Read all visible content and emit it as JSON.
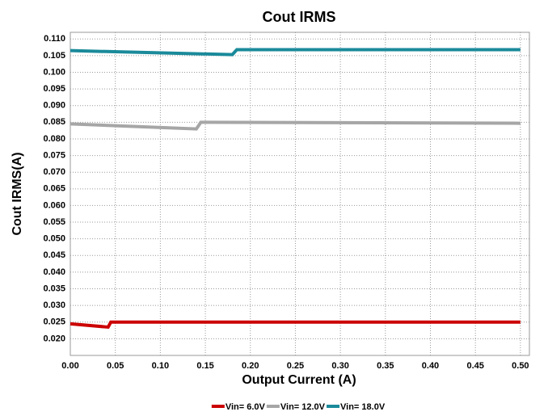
{
  "chart_data": {
    "type": "line",
    "title": "Cout IRMS",
    "x_label": "Output Current (A)",
    "y_label": "Cout IRMS(A)",
    "xlim": [
      0,
      0.51
    ],
    "ylim": [
      0.015,
      0.112
    ],
    "grid": true,
    "legend": "bottom",
    "xticks": [
      {
        "value": 0,
        "label": "0.00"
      },
      {
        "value": 0.05,
        "label": "0.05"
      },
      {
        "value": 0.1,
        "label": "0.10"
      },
      {
        "value": 0.15,
        "label": "0.15"
      },
      {
        "value": 0.2,
        "label": "0.20"
      },
      {
        "value": 0.25,
        "label": "0.25"
      },
      {
        "value": 0.3,
        "label": "0.30"
      },
      {
        "value": 0.35,
        "label": "0.35"
      },
      {
        "value": 0.4,
        "label": "0.40"
      },
      {
        "value": 0.45,
        "label": "0.45"
      },
      {
        "value": 0.5,
        "label": "0.50"
      }
    ],
    "yticks": [
      {
        "value": 0.02,
        "label": "0.020"
      },
      {
        "value": 0.025,
        "label": "0.025"
      },
      {
        "value": 0.03,
        "label": "0.030"
      },
      {
        "value": 0.035,
        "label": "0.035"
      },
      {
        "value": 0.04,
        "label": "0.040"
      },
      {
        "value": 0.045,
        "label": "0.045"
      },
      {
        "value": 0.05,
        "label": "0.050"
      },
      {
        "value": 0.055,
        "label": "0.055"
      },
      {
        "value": 0.06,
        "label": "0.060"
      },
      {
        "value": 0.065,
        "label": "0.065"
      },
      {
        "value": 0.07,
        "label": "0.070"
      },
      {
        "value": 0.075,
        "label": "0.075"
      },
      {
        "value": 0.08,
        "label": "0.080"
      },
      {
        "value": 0.085,
        "label": "0.085"
      },
      {
        "value": 0.09,
        "label": "0.090"
      },
      {
        "value": 0.095,
        "label": "0.095"
      },
      {
        "value": 0.1,
        "label": "0.100"
      },
      {
        "value": 0.105,
        "label": "0.105"
      },
      {
        "value": 0.11,
        "label": "0.110"
      }
    ],
    "series": [
      {
        "name": "Vin= 6.0V",
        "color": "#cc0000",
        "x": [
          0,
          0.042,
          0.045,
          0.5
        ],
        "values": [
          0.0245,
          0.0235,
          0.025,
          0.025
        ]
      },
      {
        "name": "Vin= 12.0V",
        "color": "#a6a6a6",
        "x": [
          0,
          0.14,
          0.145,
          0.5
        ],
        "values": [
          0.0845,
          0.083,
          0.085,
          0.0847
        ]
      },
      {
        "name": "Vin= 18.0V",
        "color": "#1a8a9a",
        "x": [
          0,
          0.18,
          0.185,
          0.5
        ],
        "values": [
          0.1065,
          0.1053,
          0.1068,
          0.1068
        ]
      }
    ]
  }
}
